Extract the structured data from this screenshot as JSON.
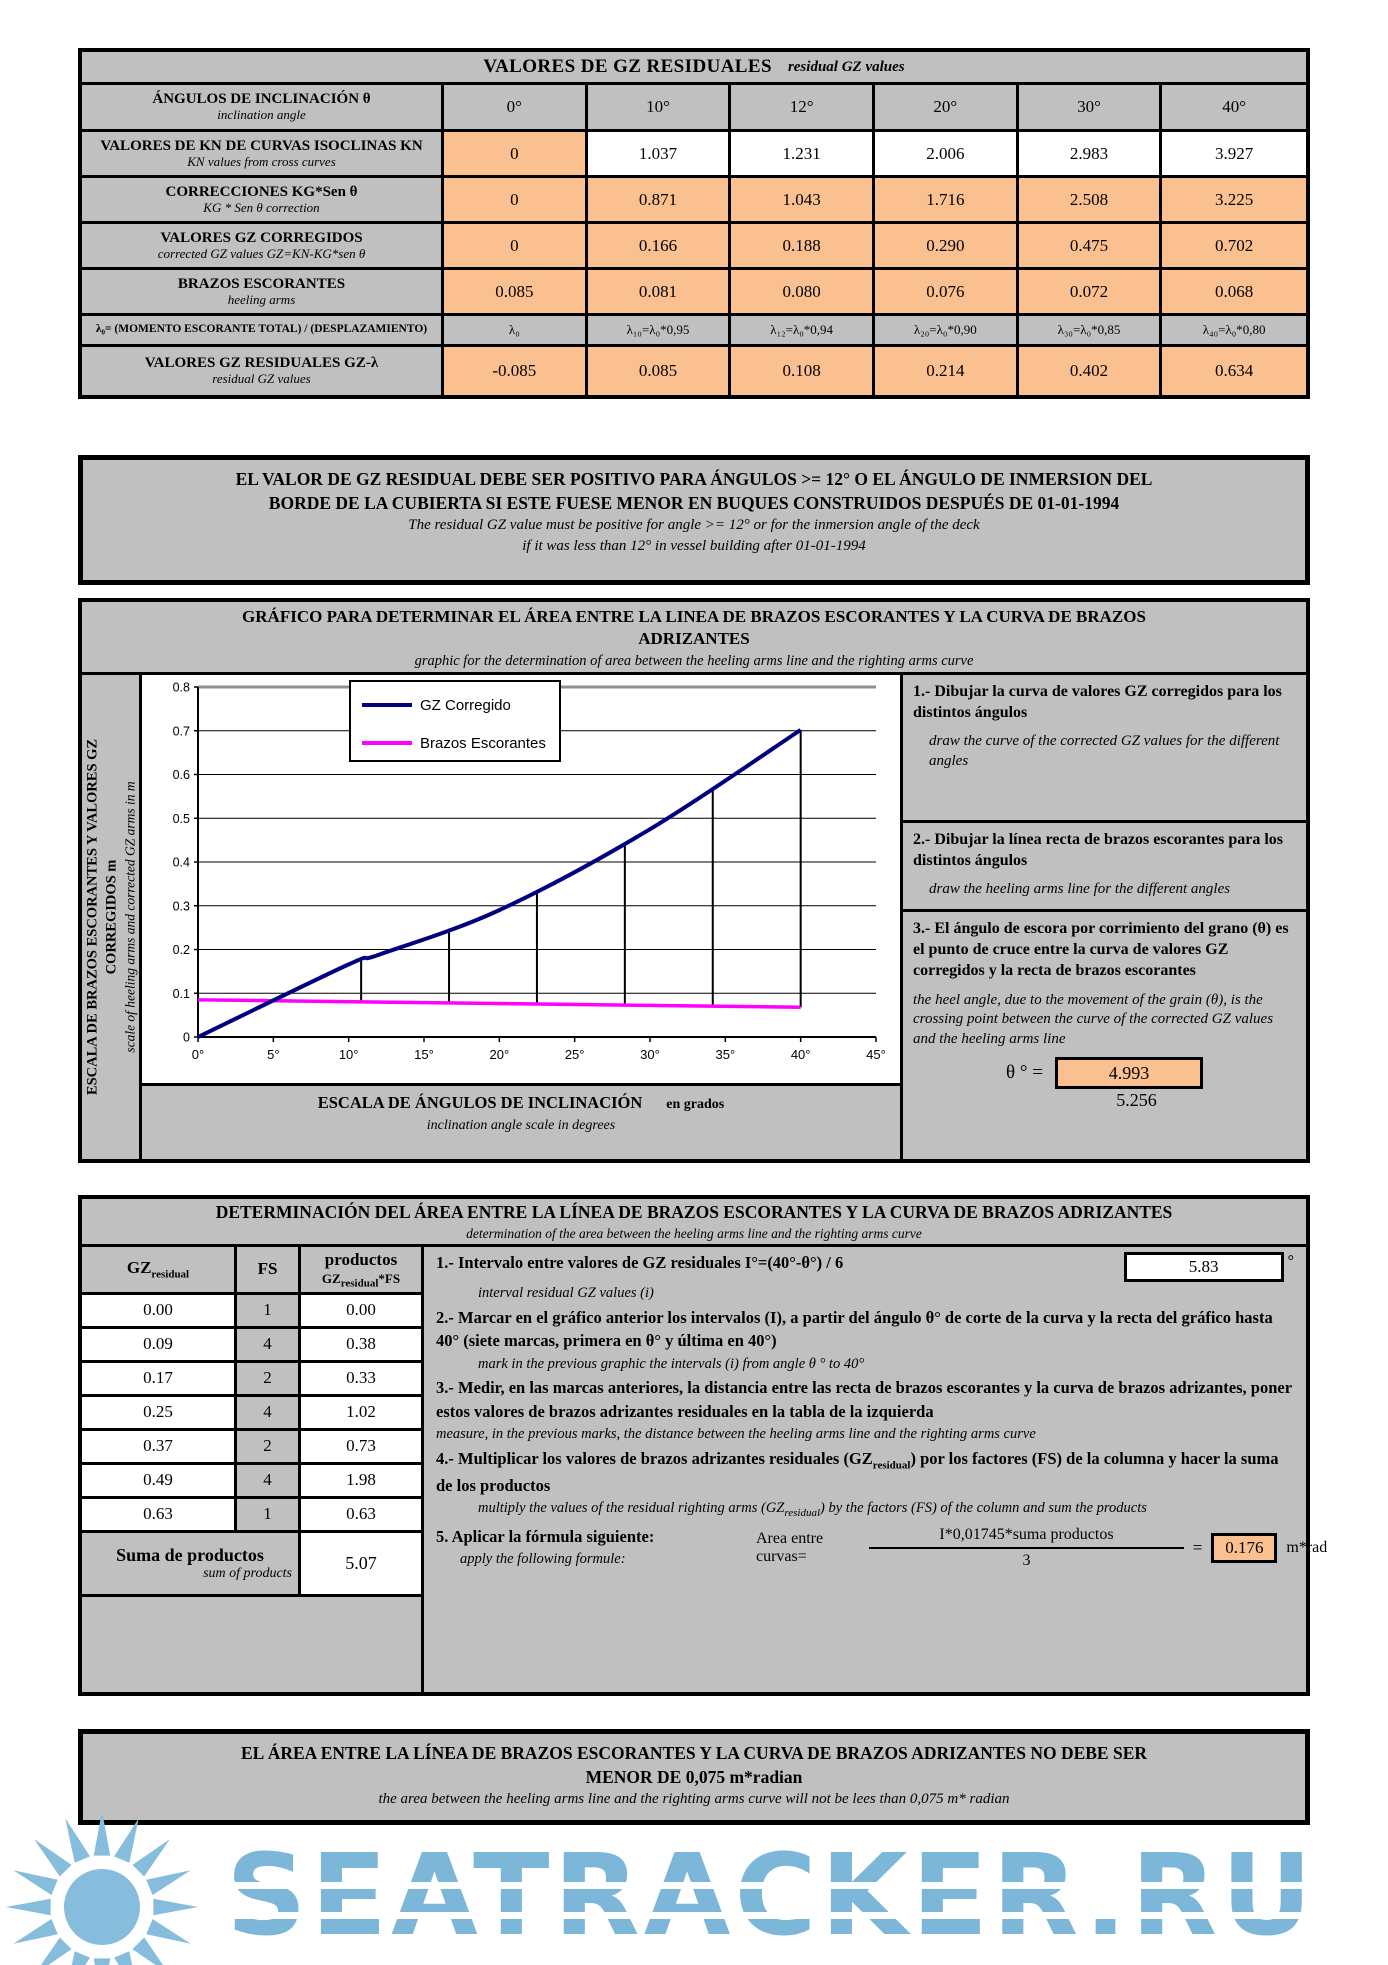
{
  "colors": {
    "panel_gray": "#c0c0c0",
    "input_orange": "#fac090",
    "curve_navy": "#000080",
    "heel_magenta": "#ff00ff",
    "logo_blue": "#7cb6d9"
  },
  "top_table": {
    "title": "VALORES DE GZ RESIDUALES",
    "title_en": "residual GZ values",
    "angle_row": {
      "id": "inclination-angles",
      "label": "ÁNGULOS DE INCLINACIÓN  θ",
      "label_en": "inclination angle",
      "values": [
        "0°",
        "10°",
        "12°",
        "20°",
        "30°",
        "40°"
      ],
      "cell_bg": [
        "gray",
        "gray",
        "gray",
        "gray",
        "gray",
        "gray"
      ]
    },
    "rows": [
      {
        "id": "kn-values",
        "label": "VALORES DE KN DE CURVAS ISOCLINAS  KN",
        "label_en": "KN values from cross curves",
        "values": [
          "0",
          "1.037",
          "1.231",
          "2.006",
          "2.983",
          "3.927"
        ],
        "cell_bg": [
          "orange",
          "white",
          "white",
          "white",
          "white",
          "white"
        ]
      },
      {
        "id": "corrections",
        "label": "CORRECCIONES   KG*Sen θ",
        "label_en": "KG * Sen θ correction",
        "values": [
          "0",
          "0.871",
          "1.043",
          "1.716",
          "2.508",
          "3.225"
        ],
        "cell_bg": [
          "orange",
          "orange",
          "orange",
          "orange",
          "orange",
          "orange"
        ]
      },
      {
        "id": "gz-corrected",
        "label": "VALORES GZ CORREGIDOS",
        "label_en": "corrected GZ values  GZ=KN-KG*sen θ",
        "values": [
          "0",
          "0.166",
          "0.188",
          "0.290",
          "0.475",
          "0.702"
        ],
        "cell_bg": [
          "orange",
          "orange",
          "orange",
          "orange",
          "orange",
          "orange"
        ]
      },
      {
        "id": "heeling-arms",
        "label": "BRAZOS ESCORANTES",
        "label_en": "heeling arms",
        "values": [
          "0.085",
          "0.081",
          "0.080",
          "0.076",
          "0.072",
          "0.068"
        ],
        "cell_bg": [
          "orange",
          "orange",
          "orange",
          "orange",
          "orange",
          "orange"
        ]
      },
      {
        "id": "lambda",
        "label": "λ₀= (MOMENTO ESCORANTE TOTAL) / (DESPLAZAMIENTO)",
        "label_en": "",
        "values": [
          "λ₀",
          "λ₁₀=λ₀*0,95",
          "λ₁₂=λ₀*0,94",
          "λ₂₀=λ₀*0,90",
          "λ₃₀=λ₀*0,85",
          "λ₄₀=λ₀*0,80"
        ],
        "cell_bg": [
          "gray",
          "gray",
          "gray",
          "gray",
          "gray",
          "gray"
        ]
      },
      {
        "id": "gz-residual",
        "label": "VALORES GZ RESIDUALES    GZ-λ",
        "label_en": "residual GZ values",
        "values": [
          "-0.085",
          "0.085",
          "0.108",
          "0.214",
          "0.402",
          "0.634"
        ],
        "cell_bg": [
          "orange",
          "orange",
          "orange",
          "orange",
          "orange",
          "orange"
        ]
      }
    ]
  },
  "warning1": {
    "line1": "EL VALOR DE GZ RESIDUAL DEBE SER POSITIVO PARA ÁNGULOS >= 12° O EL ÁNGULO DE INMERSION DEL",
    "line2": "BORDE DE LA CUBIERTA SI ESTE FUESE MENOR EN BUQUES CONSTRUIDOS DESPUÉS DE 01-01-1994",
    "line3_en": "The residual GZ value must be positive for angle >= 12° or for the inmersion angle of the deck",
    "line4_en": "if it was less than 12° in vessel building after 01-01-1994"
  },
  "graph": {
    "title_l1": "GRÁFICO PARA DETERMINAR EL ÁREA ENTRE LA LINEA DE BRAZOS ESCORANTES Y LA CURVA DE BRAZOS",
    "title_l2": "ADRIZANTES",
    "title_en": "graphic for the determination of area between the heeling arms line and the righting arms curve",
    "y_axis_label": "ESCALA DE BRAZOS ESCORANTES Y VALORES GZ",
    "y_axis_label2": "CORREGIDOS   m",
    "y_axis_label_en": "scale of heeling arms and corrected GZ arms in m",
    "x_axis_label": "ESCALA DE ÁNGULOS DE INCLINACIÓN",
    "x_axis_label_unit": "en grados",
    "x_axis_label_en": "inclination angle scale in degrees",
    "instructions": [
      {
        "es": "1.- Dibujar la curva de valores GZ corregidos para los distintos ángulos",
        "en": "draw the curve of the corrected GZ values for the different angles"
      },
      {
        "es": "2.- Dibujar la línea recta de brazos escorantes para los distintos ángulos",
        "en": "draw the heeling arms line for the different angles"
      },
      {
        "es": "3.- El ángulo de escora por corrimiento del grano (θ) es el punto de cruce entre la curva de valores GZ corregidos y la recta de brazos escorantes",
        "en": "the heel angle, due to the movement of the grain (θ), is the crossing point between the curve of the corrected GZ values and the heeling arms line"
      }
    ],
    "theta_label": "θ ° =",
    "theta_value": "4.993",
    "theta_value2": "5.256"
  },
  "chart_data": {
    "type": "line",
    "xlim": [
      0,
      45
    ],
    "ylim": [
      0,
      0.8
    ],
    "x_ticks": [
      "0°",
      "5°",
      "10°",
      "15°",
      "20°",
      "25°",
      "30°",
      "35°",
      "40°",
      "45°"
    ],
    "x_tick_values": [
      0,
      5,
      10,
      15,
      20,
      25,
      30,
      35,
      40,
      45
    ],
    "y_ticks": [
      "0",
      "0.1",
      "0.2",
      "0.3",
      "0.4",
      "0.5",
      "0.6",
      "0.7",
      "0.8"
    ],
    "y_tick_values": [
      0,
      0.1,
      0.2,
      0.3,
      0.4,
      0.5,
      0.6,
      0.7,
      0.8
    ],
    "grid": "horizontal",
    "legend_position": "top-center",
    "series": [
      {
        "name": "GZ Corregido",
        "color": "#000080",
        "x": [
          0,
          10,
          12,
          20,
          30,
          40
        ],
        "y": [
          0,
          0.166,
          0.188,
          0.29,
          0.475,
          0.702
        ]
      },
      {
        "name": "Brazos Escorantes",
        "color": "#ff00ff",
        "x": [
          0,
          40
        ],
        "y": [
          0.085,
          0.068
        ]
      }
    ],
    "interval_marks": {
      "start_angle": 4.993,
      "end_angle": 40,
      "count": 7
    }
  },
  "det": {
    "title": "DETERMINACIÓN DEL ÁREA ENTRE LA LÍNEA DE BRAZOS ESCORANTES Y LA CURVA DE BRAZOS ADRIZANTES",
    "title_en": "determination of the area between the heeling arms line and the righting arms curve",
    "table": {
      "col1_main": "GZ",
      "col1_sub": "residual",
      "col2": "FS",
      "col3_main": "productos",
      "col3_sub_pre": "GZ",
      "col3_sub_sub": "residual",
      "col3_sub_post": "*FS",
      "rows": [
        [
          "0.00",
          "1",
          "0.00"
        ],
        [
          "0.09",
          "4",
          "0.38"
        ],
        [
          "0.17",
          "2",
          "0.33"
        ],
        [
          "0.25",
          "4",
          "1.02"
        ],
        [
          "0.37",
          "2",
          "0.73"
        ],
        [
          "0.49",
          "4",
          "1.98"
        ],
        [
          "0.63",
          "1",
          "0.63"
        ]
      ],
      "suma_label": "Suma de productos",
      "suma_label_en": "sum of products",
      "suma_value": "5.07"
    },
    "steps": {
      "s1": "1.- Intervalo entre valores de GZ residuales I°=(40°-θ°) / 6",
      "s1_en": "interval residual GZ values (i)",
      "s1_value": "5.83",
      "s1_unit": "°",
      "s2": "2.- Marcar en el gráfico anterior los intervalos (I), a partir del ángulo θ° de corte de la curva y la recta del gráfico hasta 40° (siete marcas, primera en θ° y última en 40°)",
      "s2_en": "mark in the previous graphic the intervals (i) from angle θ ° to 40°",
      "s3": "3.- Medir, en las marcas anteriores, la distancia entre las recta de brazos escorantes y la curva de brazos adrizantes, poner estos valores de brazos adrizantes residuales en la tabla de la izquierda",
      "s3_en": "measure, in the previous marks, the distance between the heeling arms line and the righting arms curve",
      "s4_pre": "4.- Multiplicar los valores de brazos adrizantes residuales (GZ",
      "s4_sub": "residual",
      "s4_post": ") por los factores (FS) de la columna y hacer la suma de los productos",
      "s4_en_pre": "multiply the values of the residual righting arms (GZ",
      "s4_en_sub": "residual",
      "s4_en_post": ") by the factors (FS) of the column and sum the products",
      "s5": "5. Aplicar la fórmula siguiente:",
      "s5_en": "apply the following formule:",
      "formula_label": "Area entre curvas=",
      "formula_num": "I*0,01745*suma productos",
      "formula_den": "3",
      "equals": "=",
      "result": "0.176",
      "result_unit": "m*rad"
    }
  },
  "warning2": {
    "line1": "EL ÁREA ENTRE LA LÍNEA DE BRAZOS ESCORANTES Y LA CURVA DE BRAZOS ADRIZANTES NO DEBE SER",
    "line2": "MENOR DE 0,075 m*radian",
    "line3_en": "the area between the heeling arms line and the righting arms curve will not be lees than 0,075 m* radian"
  },
  "logo": {
    "text": "SEATRACKER.RU"
  }
}
